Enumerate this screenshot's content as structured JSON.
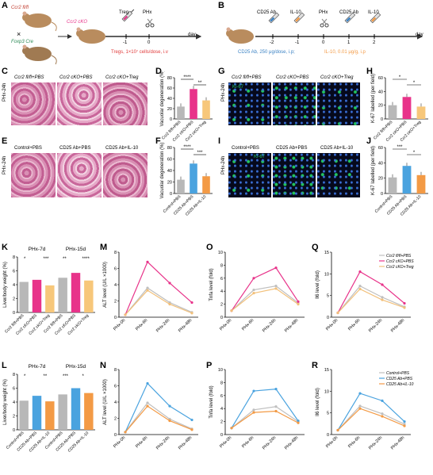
{
  "panels": {
    "A": {
      "letter": "A",
      "mouse1": "Ccr2 fl/fl",
      "mouse2": "Foxp3 Cre",
      "cross": "×",
      "ko": "Ccr2 cKO",
      "treg": "Treg",
      "phx": "PHx",
      "t1": "-1",
      "t0": "0",
      "day": "day",
      "note": "Tregs, 1×10⁷ cells/dose, i.v"
    },
    "B": {
      "letter": "B",
      "labels": [
        "CD25 Ab",
        "IL-10",
        "PHx",
        "CD25 Ab",
        "IL-10"
      ],
      "ticks": [
        "-2",
        "-1",
        "0",
        "1",
        "2"
      ],
      "day": "day",
      "note1": "CD25 Ab, 250 μg/dose, i.p;",
      "note2": "IL-10, 0.01 μg/g, i.p"
    },
    "C": {
      "letter": "C",
      "row": "PHx-24h",
      "cols": [
        "Ccr2 fl/fl+PBS",
        "Ccr2 cKO+PBS",
        "Ccr2 cKO+Treg"
      ]
    },
    "E": {
      "letter": "E",
      "row": "PHx-24h",
      "cols": [
        "Control+PBS",
        "CD25 Ab+PBS",
        "CD25 Ab+IL-10"
      ]
    },
    "G": {
      "letter": "G",
      "row": "PHx-24h",
      "cols": [
        "Ccr2 fl/fl+PBS",
        "Ccr2 cKO+PBS",
        "Ccr2 cKO+Treg"
      ],
      "stain": "Ki-67"
    },
    "I": {
      "letter": "I",
      "row": "PHx-24h",
      "cols": [
        "Control+PBS",
        "CD25 Ab+PBS",
        "CD25 Ab+IL-10"
      ],
      "stain": "Ki-67"
    }
  },
  "colors": {
    "ctrl": "#b8b8b8",
    "ko": "#e8338a",
    "treg": "#f7c77a",
    "cd25": "#4aa3df",
    "il10": "#f39a45",
    "line_ctrl": "#bfbfbf",
    "line_treg": "#f2c07a"
  },
  "legend_top": [
    "Ccr2 fl/fl+PBS",
    "Ccr2 cKO+PBS",
    "Ccr2 cKO+Treg"
  ],
  "legend_bottom": [
    "Control+PBS",
    "CD25 Ab+PBS",
    "CD25 Ab+IL-10"
  ],
  "chart_data": [
    {
      "id": "D",
      "type": "bar",
      "ylabel": "Vacuolar degeneration (%)",
      "ylim": [
        0,
        80
      ],
      "yticks": [
        "0",
        "20",
        "40",
        "60",
        "80"
      ],
      "categories": [
        "Ccr2 fl/fl+PBS",
        "Ccr2 cKO+PBS",
        "Ccr2 cKO+Treg"
      ],
      "values": [
        24,
        58,
        36
      ],
      "sig": [
        "****",
        "**"
      ]
    },
    {
      "id": "F",
      "type": "bar",
      "ylabel": "Vacuolar degeneration (%)",
      "ylim": [
        0,
        80
      ],
      "yticks": [
        "0",
        "20",
        "40",
        "60",
        "80"
      ],
      "categories": [
        "Control+PBS",
        "CD25 Ab+PBS",
        "CD25 Ab+IL-10"
      ],
      "values": [
        24,
        52,
        30
      ],
      "sig": [
        "****",
        "***"
      ]
    },
    {
      "id": "H",
      "type": "bar",
      "ylabel": "K-67 labelled (per field)",
      "ylim": [
        0,
        60
      ],
      "yticks": [
        "0",
        "20",
        "40",
        "60"
      ],
      "categories": [
        "Ccr2 fl/fl+PBS",
        "Ccr2 cKO+PBS",
        "Ccr2 cKO+Treg"
      ],
      "values": [
        20,
        32,
        18
      ],
      "sig": [
        "*",
        "*"
      ]
    },
    {
      "id": "J",
      "type": "bar",
      "ylabel": "K-67 labelled (per field)",
      "ylim": [
        0,
        60
      ],
      "yticks": [
        "0",
        "20",
        "40",
        "60"
      ],
      "categories": [
        "Control+PBS",
        "CD25 Ab+PBS",
        "CD25 Ab+IL-10"
      ],
      "values": [
        21,
        36,
        24
      ],
      "sig": [
        "***",
        "*"
      ]
    },
    {
      "id": "K",
      "type": "bar",
      "ylabel": "Liver/body weight (%)",
      "ylim": [
        0,
        8
      ],
      "yticks": [
        "0",
        "2",
        "4",
        "6",
        "8"
      ],
      "groups": [
        "PHx-7d",
        "PHx-15d"
      ],
      "categories": [
        "Ccr2 fl/fl+PBS",
        "Ccr2 cKO+PBS",
        "Ccr2 cKO+Treg"
      ],
      "series": [
        {
          "name": "PHx-7d",
          "values": [
            4.4,
            4.7,
            3.9
          ]
        },
        {
          "name": "PHx-15d",
          "values": [
            5.0,
            5.7,
            4.6
          ]
        }
      ],
      "sig": [
        "*",
        "***",
        "**",
        "****"
      ]
    },
    {
      "id": "L",
      "type": "bar",
      "ylabel": "Liver/body weight (%)",
      "ylim": [
        0,
        8
      ],
      "yticks": [
        "0",
        "2",
        "4",
        "6",
        "8"
      ],
      "groups": [
        "PHx-7d",
        "PHx-15d"
      ],
      "categories": [
        "Control+PBS",
        "CD25 Ab+PBS",
        "CD25 Ab+IL-10"
      ],
      "series": [
        {
          "name": "PHx-7d",
          "values": [
            4.2,
            4.9,
            4.1
          ]
        },
        {
          "name": "PHx-15d",
          "values": [
            5.1,
            6.0,
            5.3
          ]
        }
      ],
      "sig": [
        "*",
        "**",
        "***",
        "*"
      ]
    },
    {
      "id": "M",
      "type": "line",
      "ylabel": "ALT level (U/L ×1000)",
      "ylim": [
        0,
        8
      ],
      "yticks": [
        "0",
        "2",
        "4",
        "6",
        "8"
      ],
      "x": [
        "PHx-0h",
        "PHx-6h",
        "PHx-24h",
        "PHx-48h"
      ],
      "series": [
        {
          "name": "Ccr2 fl/fl+PBS",
          "values": [
            0.3,
            3.6,
            1.8,
            0.6
          ]
        },
        {
          "name": "Ccr2 cKO+PBS",
          "values": [
            0.3,
            6.8,
            4.2,
            1.8
          ]
        },
        {
          "name": "Ccr2 cKO+Treg",
          "values": [
            0.3,
            3.3,
            1.6,
            0.5
          ]
        }
      ]
    },
    {
      "id": "N",
      "type": "line",
      "ylabel": "ALT level (U/L ×1000)",
      "ylim": [
        0,
        8
      ],
      "yticks": [
        "0",
        "2",
        "4",
        "6",
        "8"
      ],
      "x": [
        "PHx-0h",
        "PHx-6h",
        "PHx-24h",
        "PHx-48h"
      ],
      "series": [
        {
          "name": "Control+PBS",
          "values": [
            0.3,
            3.9,
            1.9,
            0.7
          ]
        },
        {
          "name": "CD25 Ab+PBS",
          "values": [
            0.3,
            6.3,
            3.5,
            1.8
          ]
        },
        {
          "name": "CD25 Ab+IL-10",
          "values": [
            0.3,
            3.5,
            1.7,
            0.6
          ]
        }
      ]
    },
    {
      "id": "O",
      "type": "line",
      "ylabel": "Tnfa level (fold)",
      "ylim": [
        0,
        10
      ],
      "yticks": [
        "0",
        "2",
        "4",
        "6",
        "8",
        "10"
      ],
      "x": [
        "PHx-0h",
        "PHx-6h",
        "PHx-24h",
        "PHx-48h"
      ],
      "series": [
        {
          "name": "Ccr2 fl/fl+PBS",
          "values": [
            1,
            4.2,
            4.8,
            2.2
          ]
        },
        {
          "name": "Ccr2 cKO+PBS",
          "values": [
            1,
            6.0,
            7.6,
            2.4
          ]
        },
        {
          "name": "Ccr2 cKO+Treg",
          "values": [
            1,
            3.7,
            4.4,
            2.0
          ]
        }
      ]
    },
    {
      "id": "P",
      "type": "line",
      "ylabel": "Tnfa level (fold)",
      "ylim": [
        0,
        10
      ],
      "yticks": [
        "0",
        "2",
        "4",
        "6",
        "8",
        "10"
      ],
      "x": [
        "PHx-0h",
        "PHx-6h",
        "PHx-24h",
        "PHx-48h"
      ],
      "series": [
        {
          "name": "Control+PBS",
          "values": [
            1,
            3.8,
            4.3,
            2.0
          ]
        },
        {
          "name": "CD25 Ab+PBS",
          "values": [
            1,
            6.7,
            7.0,
            2.1
          ]
        },
        {
          "name": "CD25 Ab+IL-10",
          "values": [
            1,
            3.4,
            3.6,
            1.8
          ]
        }
      ]
    },
    {
      "id": "Q",
      "type": "line",
      "ylabel": "Il6 level (fold)",
      "ylim": [
        0,
        15
      ],
      "yticks": [
        "0",
        "5",
        "10",
        "15"
      ],
      "x": [
        "PHx-0h",
        "PHx-6h",
        "PHx-24h",
        "PHx-48h"
      ],
      "series": [
        {
          "name": "Ccr2 fl/fl+PBS",
          "values": [
            1,
            7.2,
            4.6,
            2.4
          ]
        },
        {
          "name": "Ccr2 cKO+PBS",
          "values": [
            1,
            10.5,
            7.5,
            3.2
          ]
        },
        {
          "name": "Ccr2 cKO+Treg",
          "values": [
            1,
            6.5,
            4.0,
            2.2
          ]
        }
      ]
    },
    {
      "id": "R",
      "type": "line",
      "ylabel": "Il6 level (fold)",
      "ylim": [
        0,
        15
      ],
      "yticks": [
        "0",
        "5",
        "10",
        "15"
      ],
      "x": [
        "PHx-0h",
        "PHx-6h",
        "PHx-24h",
        "PHx-48h"
      ],
      "series": [
        {
          "name": "Control+PBS",
          "values": [
            1,
            6.6,
            4.8,
            2.4
          ]
        },
        {
          "name": "CD25 Ab+PBS",
          "values": [
            1,
            9.5,
            7.8,
            3.0
          ]
        },
        {
          "name": "CD25 Ab+IL-10",
          "values": [
            1,
            6.0,
            4.2,
            2.0
          ]
        }
      ]
    }
  ]
}
